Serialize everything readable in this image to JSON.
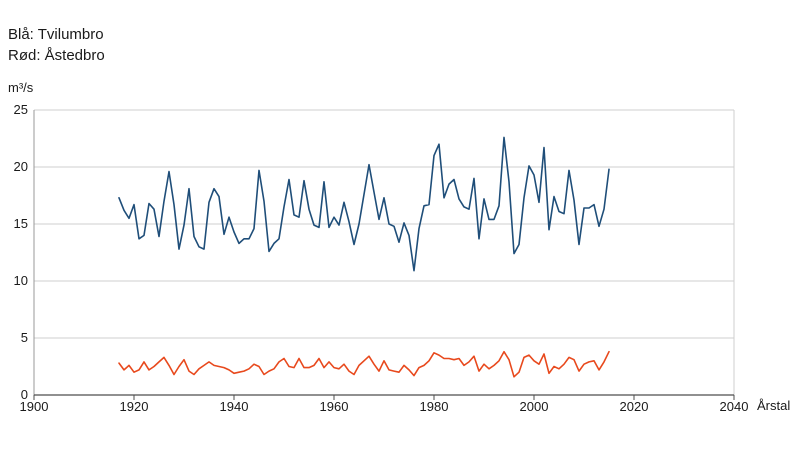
{
  "legend": {
    "blue_label": "Blå: Tvilumbro",
    "red_label": "Rød: Åstedbro"
  },
  "chart_data": {
    "type": "line",
    "title": "",
    "ylabel": "m³/s",
    "xlabel": "Årstal",
    "xlim": [
      1900,
      2040
    ],
    "ylim": [
      0,
      25
    ],
    "x_ticks": [
      1900,
      1920,
      1940,
      1960,
      1980,
      2000,
      2020,
      2040
    ],
    "y_ticks": [
      0,
      5,
      10,
      15,
      20,
      25
    ],
    "grid": "horizontal",
    "series": [
      {
        "name": "Tvilumbro",
        "color": "#1f4e79",
        "x": [
          1917,
          1918,
          1919,
          1920,
          1921,
          1922,
          1923,
          1924,
          1925,
          1926,
          1927,
          1928,
          1929,
          1930,
          1931,
          1932,
          1933,
          1934,
          1935,
          1936,
          1937,
          1938,
          1939,
          1940,
          1941,
          1942,
          1943,
          1944,
          1945,
          1946,
          1947,
          1948,
          1949,
          1950,
          1951,
          1952,
          1953,
          1954,
          1955,
          1956,
          1957,
          1958,
          1959,
          1960,
          1961,
          1962,
          1963,
          1964,
          1965,
          1966,
          1967,
          1968,
          1969,
          1970,
          1971,
          1972,
          1973,
          1974,
          1975,
          1976,
          1977,
          1978,
          1979,
          1980,
          1981,
          1982,
          1983,
          1984,
          1985,
          1986,
          1987,
          1988,
          1989,
          1990,
          1991,
          1992,
          1993,
          1994,
          1995,
          1996,
          1997,
          1998,
          1999,
          2000,
          2001,
          2002,
          2003,
          2004,
          2005,
          2006,
          2007,
          2008,
          2009,
          2010,
          2011,
          2012,
          2013,
          2014,
          2015
        ],
        "values": [
          17.3,
          16.2,
          15.5,
          16.7,
          13.7,
          14.0,
          16.8,
          16.3,
          13.9,
          17.0,
          19.6,
          16.7,
          12.8,
          14.9,
          18.1,
          13.9,
          13.0,
          12.8,
          16.9,
          18.1,
          17.4,
          14.1,
          15.6,
          14.3,
          13.3,
          13.7,
          13.7,
          14.6,
          19.7,
          17.0,
          12.6,
          13.3,
          13.7,
          16.5,
          18.9,
          15.8,
          15.6,
          18.8,
          16.3,
          14.9,
          14.7,
          18.7,
          14.7,
          15.6,
          14.9,
          16.9,
          15.2,
          13.2,
          15.0,
          17.6,
          20.2,
          17.8,
          15.4,
          17.3,
          15.0,
          14.8,
          13.4,
          15.1,
          14.0,
          10.9,
          14.6,
          16.6,
          16.7,
          21.0,
          22.0,
          17.3,
          18.5,
          18.9,
          17.2,
          16.5,
          16.3,
          19.0,
          13.7,
          17.2,
          15.4,
          15.4,
          16.6,
          22.6,
          18.7,
          12.4,
          13.2,
          17.3,
          20.1,
          19.3,
          16.9,
          21.7,
          14.5,
          17.4,
          16.1,
          15.9,
          19.7,
          17.1,
          13.2,
          16.4,
          16.4,
          16.7,
          14.8,
          16.3,
          19.8
        ]
      },
      {
        "name": "Åstedbro",
        "color": "#e8491d",
        "x": [
          1917,
          1918,
          1919,
          1920,
          1921,
          1922,
          1923,
          1924,
          1925,
          1926,
          1927,
          1928,
          1929,
          1930,
          1931,
          1932,
          1933,
          1934,
          1935,
          1936,
          1937,
          1938,
          1939,
          1940,
          1941,
          1942,
          1943,
          1944,
          1945,
          1946,
          1947,
          1948,
          1949,
          1950,
          1951,
          1952,
          1953,
          1954,
          1955,
          1956,
          1957,
          1958,
          1959,
          1960,
          1961,
          1962,
          1963,
          1964,
          1965,
          1966,
          1967,
          1968,
          1969,
          1970,
          1971,
          1972,
          1973,
          1974,
          1975,
          1976,
          1977,
          1978,
          1979,
          1980,
          1981,
          1982,
          1983,
          1984,
          1985,
          1986,
          1987,
          1988,
          1989,
          1990,
          1991,
          1992,
          1993,
          1994,
          1995,
          1996,
          1997,
          1998,
          1999,
          2000,
          2001,
          2002,
          2003,
          2004,
          2005,
          2006,
          2007,
          2008,
          2009,
          2010,
          2011,
          2012,
          2013,
          2014,
          2015
        ],
        "values": [
          2.8,
          2.2,
          2.6,
          2.0,
          2.2,
          2.9,
          2.2,
          2.5,
          2.9,
          3.3,
          2.6,
          1.8,
          2.5,
          3.1,
          2.1,
          1.8,
          2.3,
          2.6,
          2.9,
          2.6,
          2.5,
          2.4,
          2.2,
          1.9,
          2.0,
          2.1,
          2.3,
          2.7,
          2.5,
          1.8,
          2.1,
          2.3,
          2.9,
          3.2,
          2.5,
          2.4,
          3.2,
          2.4,
          2.4,
          2.6,
          3.2,
          2.4,
          2.9,
          2.4,
          2.3,
          2.7,
          2.1,
          1.8,
          2.6,
          3.0,
          3.4,
          2.7,
          2.1,
          3.0,
          2.2,
          2.1,
          2.0,
          2.6,
          2.2,
          1.7,
          2.4,
          2.6,
          3.0,
          3.7,
          3.5,
          3.2,
          3.2,
          3.1,
          3.2,
          2.6,
          2.9,
          3.4,
          2.1,
          2.7,
          2.3,
          2.6,
          3.0,
          3.8,
          3.1,
          1.6,
          2.0,
          3.3,
          3.5,
          3.0,
          2.7,
          3.6,
          1.9,
          2.5,
          2.3,
          2.7,
          3.3,
          3.1,
          2.1,
          2.7,
          2.9,
          3.0,
          2.2,
          2.9,
          3.8
        ]
      }
    ]
  }
}
